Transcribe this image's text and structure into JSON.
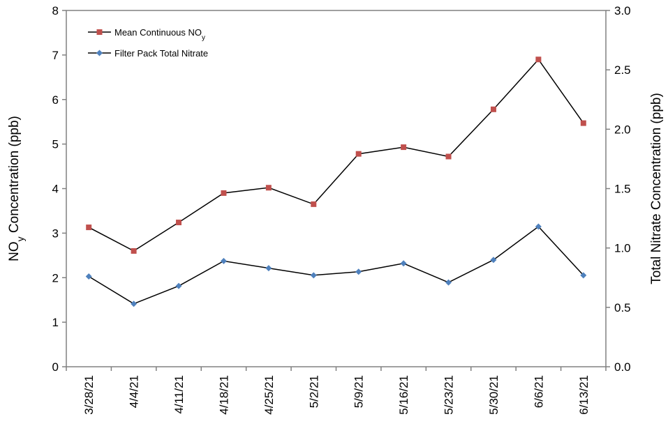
{
  "chart_data": {
    "type": "line",
    "categories": [
      "3/28/21",
      "4/4/21",
      "4/11/21",
      "4/18/21",
      "4/25/21",
      "5/2/21",
      "5/9/21",
      "5/16/21",
      "5/23/21",
      "5/30/21",
      "6/6/21",
      "6/13/21"
    ],
    "series": [
      {
        "name": "Mean Continuous NOy",
        "axis": "left",
        "color": "#c0504d",
        "marker": "square",
        "values": [
          3.13,
          2.6,
          3.24,
          3.9,
          4.02,
          3.65,
          4.78,
          4.93,
          4.72,
          5.78,
          6.9,
          5.47
        ]
      },
      {
        "name": "Filter Pack Total Nitrate",
        "axis": "right",
        "color": "#4f81bd",
        "marker": "diamond",
        "values": [
          0.76,
          0.53,
          0.68,
          0.89,
          0.83,
          0.77,
          0.8,
          0.87,
          0.71,
          0.9,
          1.18,
          0.77
        ]
      }
    ],
    "ylabel_main": "NO",
    "ylabel_sub": "y",
    "ylabel_suffix": " Concentration (ppb)",
    "y2label": "Total Nitrate Concentration (ppb)",
    "legend_main_0": "Mean Continuous NO",
    "legend_sub_0": "y",
    "legend_1": "Filter Pack Total Nitrate",
    "ylim": [
      0,
      8
    ],
    "yticks": [
      0,
      1,
      2,
      3,
      4,
      5,
      6,
      7,
      8
    ],
    "y2lim": [
      0,
      3
    ],
    "y2ticks": [
      "0.0",
      "0.5",
      "1.0",
      "1.5",
      "2.0",
      "2.5",
      "3.0"
    ],
    "legend_position": "top-left",
    "grid": false
  }
}
